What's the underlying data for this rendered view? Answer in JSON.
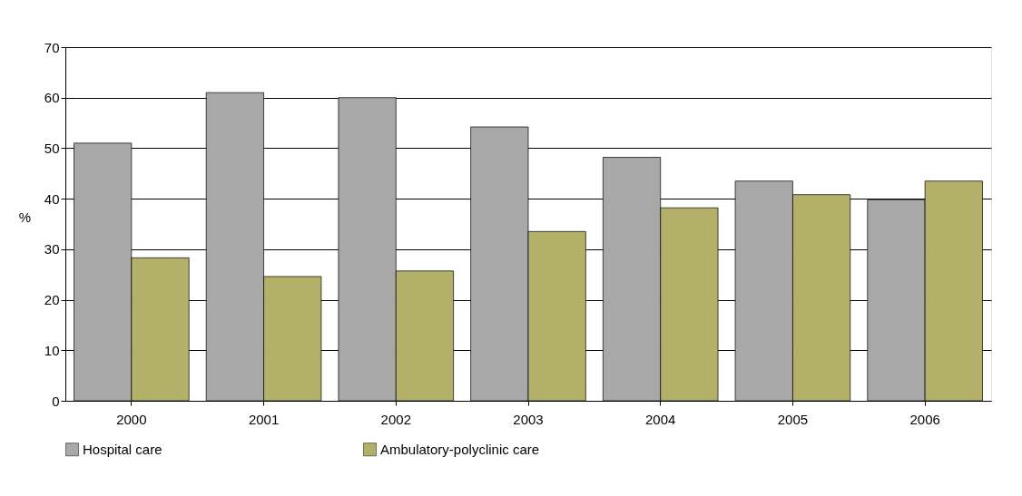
{
  "chart_data": {
    "type": "bar",
    "ylabel": "%",
    "categories": [
      "2000",
      "2001",
      "2002",
      "2003",
      "2004",
      "2005",
      "2006"
    ],
    "series": [
      {
        "name": "Hospital care",
        "color": "#a8a8a8",
        "values": [
          51.0,
          61.0,
          60.0,
          54.2,
          48.2,
          43.5,
          39.8
        ]
      },
      {
        "name": "Ambulatory-polyclinic care",
        "color": "#b3b06a",
        "values": [
          28.3,
          24.6,
          25.7,
          33.5,
          38.2,
          40.8,
          43.5
        ]
      }
    ],
    "ylim": [
      0,
      70
    ],
    "yticks": [
      0,
      10,
      20,
      30,
      40,
      50,
      60,
      70
    ],
    "grid": "y",
    "legend": "bottom"
  }
}
